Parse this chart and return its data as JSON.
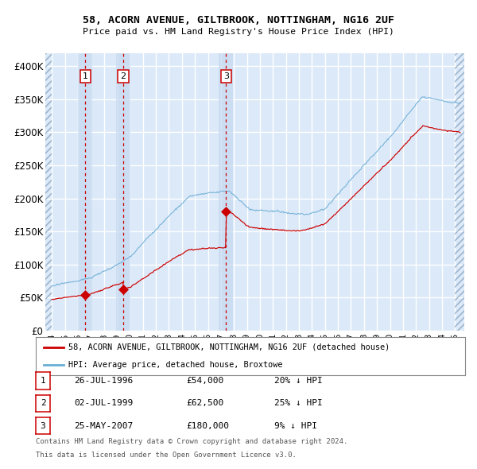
{
  "title": "58, ACORN AVENUE, GILTBROOK, NOTTINGHAM, NG16 2UF",
  "subtitle": "Price paid vs. HM Land Registry's House Price Index (HPI)",
  "hpi_color": "#6baed6",
  "price_color": "#cc0000",
  "sale1_date_num": 1996.57,
  "sale1_price": 54000,
  "sale2_date_num": 1999.5,
  "sale2_price": 62500,
  "sale3_date_num": 2007.39,
  "sale3_price": 180000,
  "ylim": [
    0,
    420000
  ],
  "yticks": [
    0,
    50000,
    100000,
    150000,
    200000,
    250000,
    300000,
    350000,
    400000
  ],
  "xlim_start": 1993.5,
  "xlim_end": 2025.7,
  "xtick_start": 1994,
  "xtick_end": 2025,
  "legend_label_price": "58, ACORN AVENUE, GILTBROOK, NOTTINGHAM, NG16 2UF (detached house)",
  "legend_label_hpi": "HPI: Average price, detached house, Broxtowe",
  "table_data": [
    {
      "num": "1",
      "date": "26-JUL-1996",
      "price": "£54,000",
      "hpi": "20% ↓ HPI"
    },
    {
      "num": "2",
      "date": "02-JUL-1999",
      "price": "£62,500",
      "hpi": "25% ↓ HPI"
    },
    {
      "num": "3",
      "date": "25-MAY-2007",
      "price": "£180,000",
      "hpi": "9% ↓ HPI"
    }
  ],
  "footnote1": "Contains HM Land Registry data © Crown copyright and database right 2024.",
  "footnote2": "This data is licensed under the Open Government Licence v3.0.",
  "background_chart": "#dce9f8",
  "background_fig": "#ffffff",
  "grid_color": "#ffffff",
  "vband_color": "#c5d9f0",
  "hatch_color": "#b8cce4",
  "box_label_color": "#cc0000"
}
